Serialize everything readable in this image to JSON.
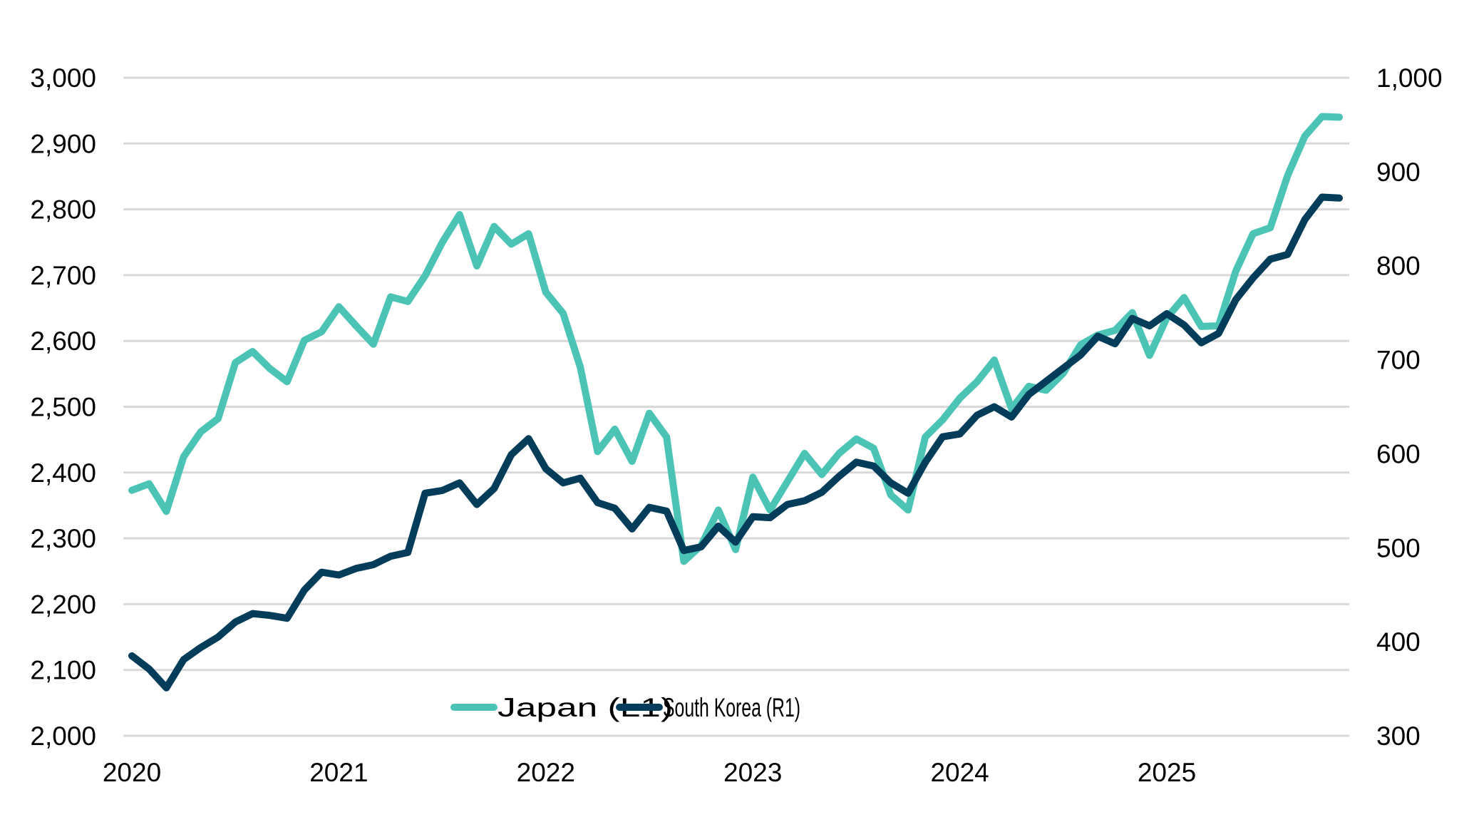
{
  "chart_data": {
    "type": "line",
    "title": "",
    "xlabel": "",
    "ylabel_left": "",
    "ylabel_right": "",
    "x_frequency": "monthly",
    "x_start": "2020-01",
    "x_end": "2025-11",
    "x_tick_labels": [
      "2020",
      "2021",
      "2022",
      "2023",
      "2024",
      "2025"
    ],
    "y_left": {
      "range": [
        2000,
        3000
      ],
      "step": 100,
      "tick_labels": [
        "2,000",
        "2,100",
        "2,200",
        "2,300",
        "2,400",
        "2,500",
        "2,600",
        "2,700",
        "2,800",
        "2,900",
        "3,000"
      ]
    },
    "y_right": {
      "range": [
        300,
        1000
      ],
      "step": 100,
      "tick_labels": [
        "300",
        "400",
        "500",
        "600",
        "700",
        "800",
        "900",
        "1,000"
      ]
    },
    "grid": "horizontal",
    "legend_position": "bottom-center",
    "series": [
      {
        "name": "Japan (L1)",
        "axis": "left",
        "color": "#4bc4b6",
        "values": [
          2373,
          2383,
          2341,
          2424,
          2462,
          2482,
          2567,
          2584,
          2558,
          2538,
          2601,
          2614,
          2652,
          2623,
          2595,
          2667,
          2660,
          2699,
          2750,
          2792,
          2714,
          2774,
          2747,
          2763,
          2674,
          2642,
          2560,
          2432,
          2466,
          2417,
          2490,
          2454,
          2265,
          2289,
          2343,
          2283,
          2393,
          2343,
          2386,
          2429,
          2397,
          2429,
          2451,
          2437,
          2366,
          2343,
          2454,
          2480,
          2513,
          2538,
          2571,
          2497,
          2531,
          2525,
          2551,
          2594,
          2609,
          2616,
          2643,
          2578,
          2635,
          2666,
          2622,
          2623,
          2706,
          2763,
          2772,
          2851,
          2911,
          2941,
          2940
        ]
      },
      {
        "name": "South Korea (R1)",
        "axis": "right",
        "color": "#043d5a",
        "values": [
          385,
          371,
          351,
          381,
          394,
          405,
          421,
          430,
          428,
          425,
          455,
          474,
          471,
          478,
          482,
          491,
          495,
          558,
          561,
          569,
          546,
          563,
          599,
          616,
          584,
          569,
          574,
          548,
          542,
          520,
          543,
          539,
          497,
          501,
          523,
          506,
          533,
          532,
          546,
          550,
          559,
          576,
          591,
          587,
          569,
          558,
          591,
          618,
          621,
          641,
          650,
          639,
          663,
          677,
          691,
          705,
          725,
          717,
          744,
          736,
          749,
          737,
          718,
          728,
          764,
          787,
          807,
          812,
          849,
          873,
          872
        ]
      }
    ]
  }
}
